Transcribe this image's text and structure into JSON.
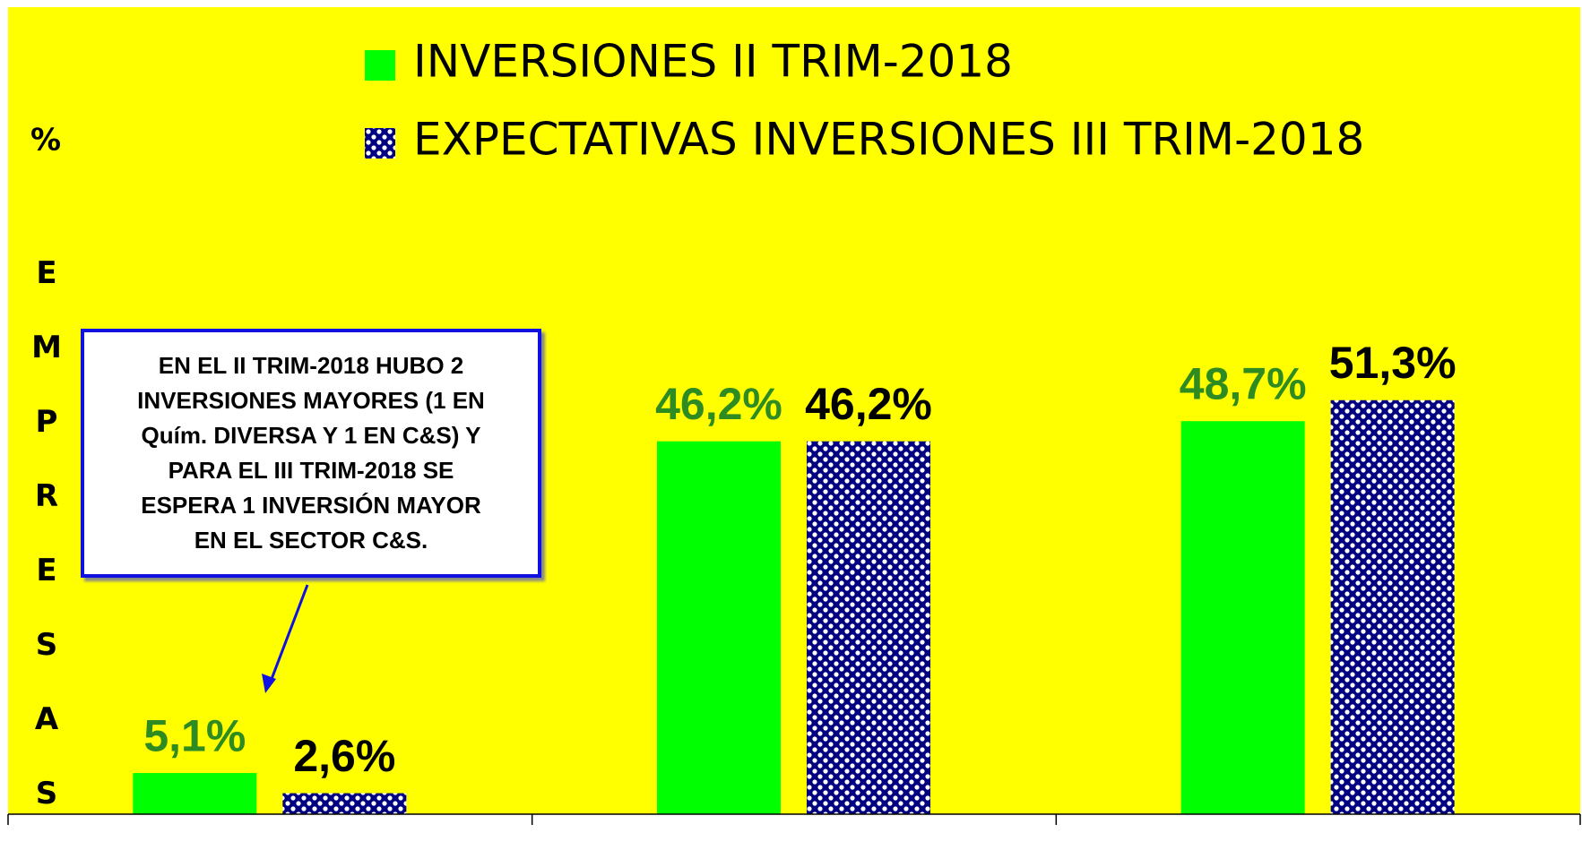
{
  "chart_data": {
    "type": "bar",
    "ylabel": "%",
    "ylabel_vertical": "EMPRESAS",
    "annotation": [
      "EN EL II TRIM-2018 HUBO 2",
      "INVERSIONES MAYORES (1 EN",
      "Quím. DIVERSA Y 1 EN C&S) Y",
      "PARA EL III TRIM-2018 SE",
      "ESPERA 1 INVERSIÓN MAYOR",
      "EN EL SECTOR C&S."
    ],
    "categories": [
      null,
      null,
      null
    ],
    "series": [
      {
        "name": "INVERSIONES II TRIM-2018",
        "color": "#00ff00",
        "label_color": "#2e8b22",
        "values": [
          5.1,
          46.2,
          48.7
        ],
        "value_labels": [
          "5,1%",
          "46,2%",
          "48,7%"
        ]
      },
      {
        "name": "EXPECTATIVAS INVERSIONES III TRIM-2018",
        "color": "#000080",
        "pattern": "dots",
        "label_color": "#000000",
        "values": [
          2.6,
          46.2,
          51.3
        ],
        "value_labels": [
          "2,6%",
          "46,2%",
          "51,3%"
        ]
      }
    ],
    "ylim": [
      0,
      100
    ]
  }
}
